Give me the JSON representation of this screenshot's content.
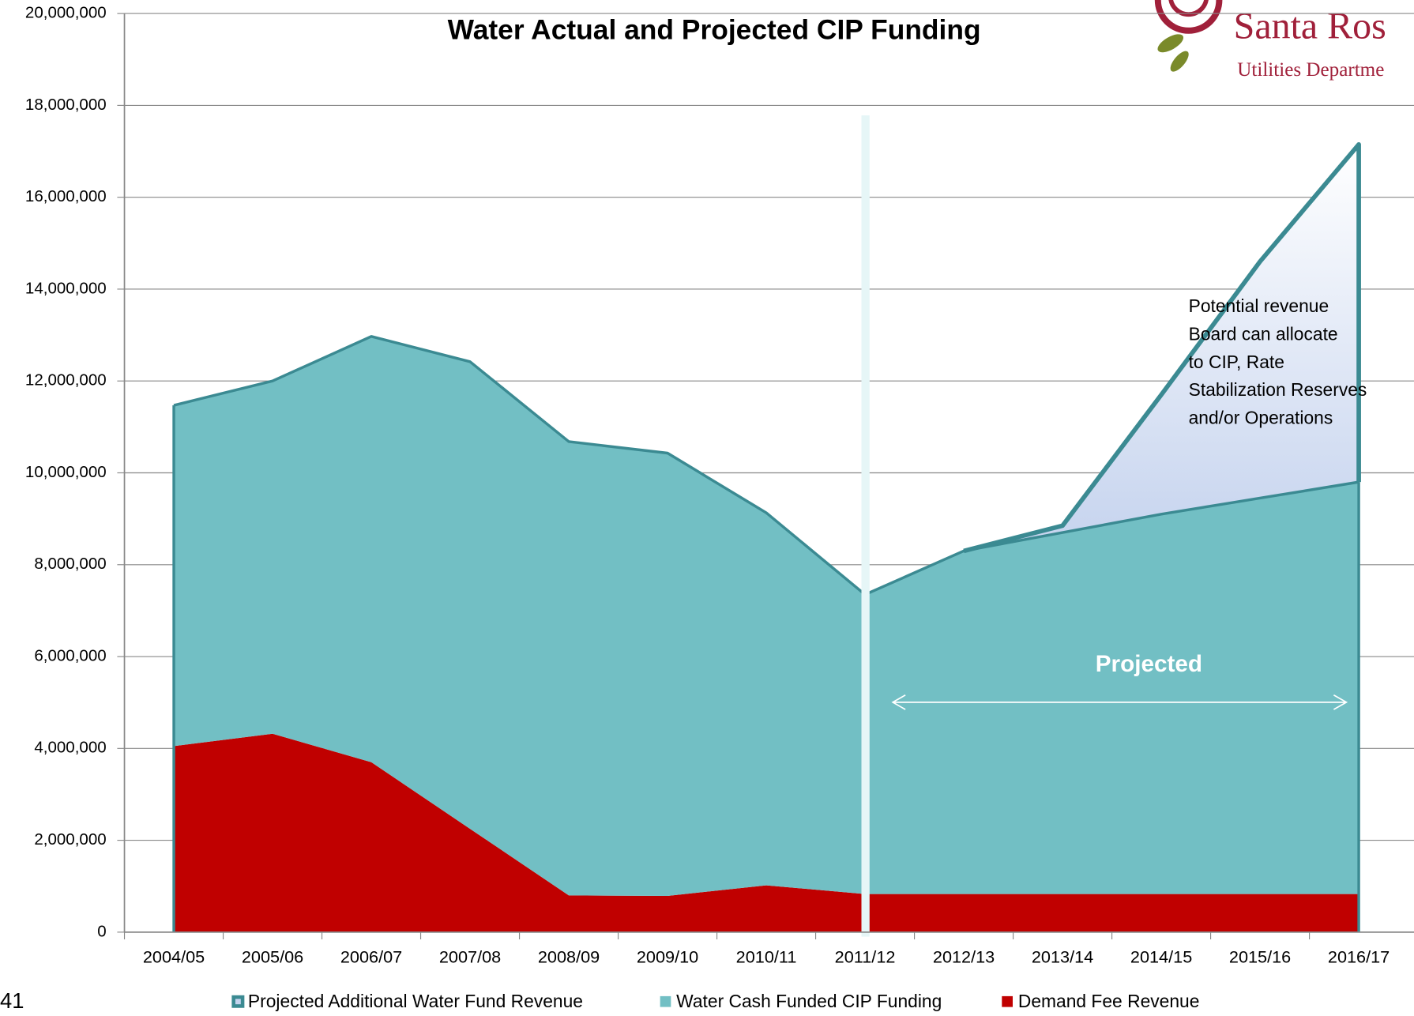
{
  "chart_data": {
    "type": "stacked-area",
    "title": "Water Actual and Projected CIP Funding",
    "categories": [
      "2004/05",
      "2005/06",
      "2006/07",
      "2007/08",
      "2008/09",
      "2009/10",
      "2010/11",
      "2011/12",
      "2012/13",
      "2013/14",
      "2014/15",
      "2015/16",
      "2016/17"
    ],
    "series": [
      {
        "name": "Projected Additional Water Fund Revenue",
        "color": "#c5d3ee",
        "line_color": "#3b8a92",
        "values": [
          null,
          null,
          null,
          null,
          null,
          null,
          null,
          null,
          0,
          150000,
          2600000,
          5150000,
          7350000
        ]
      },
      {
        "name": "Water Cash Funded CIP Funding",
        "color": "#72bfc4",
        "line_color": "#3b8a92",
        "values": [
          7420000,
          7680000,
          9270000,
          10170000,
          9880000,
          9640000,
          8110000,
          6520000,
          7470000,
          7870000,
          8270000,
          8620000,
          8970000
        ]
      },
      {
        "name": "Demand Fee Revenue",
        "color": "#c00000",
        "values": [
          4050000,
          4320000,
          3700000,
          2250000,
          800000,
          790000,
          1020000,
          830000,
          830000,
          830000,
          830000,
          830000,
          830000
        ]
      }
    ],
    "ylim": [
      0,
      20000000
    ],
    "yticks": [
      0,
      {
        "value": 2000000,
        "label": "2,000,000"
      },
      {
        "value": 4000000,
        "label": "4,000,000"
      },
      {
        "value": 6000000,
        "label": "6,000,000"
      },
      {
        "value": 8000000,
        "label": "8,000,000"
      },
      {
        "value": 10000000,
        "label": "10,000,000"
      },
      {
        "value": 12000000,
        "label": "12,000,000"
      },
      {
        "value": 14000000,
        "label": "14,000,000"
      },
      {
        "value": 16000000,
        "label": "16,000,000"
      },
      {
        "value": 18000000,
        "label": "18,000,000"
      },
      {
        "value": 20000000,
        "label": "20,000,000"
      }
    ],
    "grid": true,
    "legend": "bottom",
    "annotations": {
      "note": [
        "Potential revenue",
        "Board can allocate",
        "to CIP, Rate",
        "Stabilization Reserves",
        "and/or Operations"
      ],
      "projected": "Projected"
    },
    "logo": {
      "name": "Santa Ros",
      "subtitle": "Utilities Departme"
    },
    "page_number": "41"
  }
}
